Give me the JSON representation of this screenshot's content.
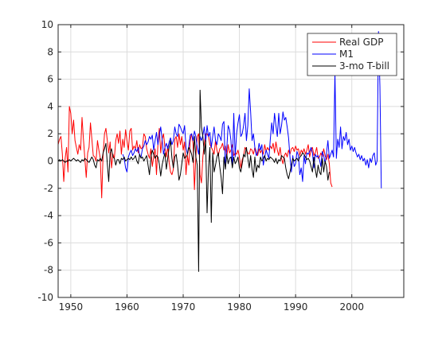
{
  "chart_data": {
    "type": "line",
    "title": "",
    "xlabel": "",
    "ylabel": "",
    "xlim": [
      1947.75,
      2009.25
    ],
    "ylim": [
      -10,
      10
    ],
    "grid": true,
    "legend_position": "top-right",
    "x_ticks": [
      1950,
      1960,
      1970,
      1980,
      1990,
      2000
    ],
    "y_ticks": [
      -10,
      -8,
      -6,
      -4,
      -2,
      0,
      2,
      4,
      6,
      8,
      10
    ],
    "series": [
      {
        "name": "Real GDP",
        "color": "#ff0000",
        "x_start": 1947.75,
        "x_step": 0.25,
        "values": [
          1.2,
          1.6,
          1.8,
          0.5,
          -1.5,
          0.2,
          1.0,
          -0.8,
          4.0,
          3.5,
          2.0,
          3.0,
          1.5,
          1.0,
          0.5,
          1.2,
          0.8,
          3.2,
          1.6,
          0.2,
          -1.2,
          0.6,
          1.0,
          2.8,
          1.6,
          0.4,
          0.3,
          0.0,
          1.5,
          0.8,
          0.2,
          -2.7,
          0.5,
          2.0,
          2.4,
          1.5,
          0.6,
          1.4,
          -0.5,
          0.5,
          0.2,
          1.5,
          2.0,
          1.3,
          2.2,
          0.5,
          1.6,
          1.0,
          2.3,
          1.5,
          0.8,
          2.2,
          2.4,
          0.8,
          1.1,
          0.9,
          1.5,
          0.6,
          1.2,
          0.9,
          1.0,
          2.0,
          1.8,
          0.9,
          0.5,
          0.2,
          0.9,
          -0.4,
          0.3,
          0.9,
          -1.0,
          1.2,
          2.4,
          0.6,
          1.6,
          2.0,
          1.0,
          0.3,
          1.1,
          -0.1,
          -0.8,
          -1.0,
          -0.6,
          1.6,
          1.8,
          1.0,
          2.0,
          1.2,
          1.8,
          0.8,
          1.4,
          -1.0,
          0.4,
          -0.3,
          1.5,
          2.0,
          1.3,
          -2.1,
          0.3,
          1.8,
          2.0,
          -1.0,
          -1.6,
          0.3,
          1.3,
          2.0,
          2.0,
          1.8,
          1.2,
          1.0,
          0.8,
          0.5,
          1.5,
          0.8,
          0.4,
          0.9,
          1.0,
          1.3,
          0.8,
          1.1,
          0.3,
          1.2,
          0.6,
          0.8,
          1.2,
          0.4,
          0.6,
          0.5,
          0.8,
          0.3,
          -0.5,
          0.1,
          0.4,
          1.0,
          0.8,
          0.6,
          0.5,
          0.9,
          0.8,
          0.5,
          1.0,
          0.7,
          0.4,
          0.9,
          0.6,
          0.8,
          0.5,
          1.2,
          0.7,
          1.0,
          0.8,
          1.1,
          0.9,
          1.3,
          0.6,
          1.4,
          0.8,
          0.4,
          1.0,
          0.2,
          -0.2,
          0.4,
          0.6,
          0.3,
          0.8,
          0.5,
          0.9,
          1.0,
          0.7,
          1.1,
          0.8,
          0.9,
          0.4,
          0.8,
          0.6,
          0.9,
          0.5,
          0.8,
          1.2,
          0.3,
          0.8,
          1.0,
          0.4,
          0.6,
          1.0,
          0.2,
          0.3,
          0.6,
          0.3,
          0.9,
          0.4,
          0.1,
          0.5,
          -0.2,
          -1.6,
          -1.9
        ]
      },
      {
        "name": "M1",
        "color": "#0000ff",
        "x_start": 1959.25,
        "x_step": 0.25,
        "values": [
          0.5,
          0.2,
          -0.5,
          -0.8,
          0.3,
          0.6,
          0.8,
          0.4,
          0.6,
          0.9,
          0.7,
          1.0,
          0.4,
          0.3,
          0.9,
          1.1,
          1.5,
          1.2,
          1.4,
          1.8,
          1.6,
          1.9,
          0.8,
          1.5,
          2.1,
          1.2,
          1.9,
          2.5,
          1.6,
          0.5,
          1.0,
          1.3,
          0.9,
          1.4,
          1.7,
          1.2,
          1.5,
          2.5,
          2.0,
          1.8,
          2.7,
          2.5,
          2.2,
          2.0,
          2.6,
          1.0,
          0.5,
          1.1,
          1.9,
          2.0,
          1.5,
          2.2,
          1.8,
          1.0,
          0.5,
          1.8,
          1.5,
          1.9,
          2.5,
          1.4,
          2.6,
          1.8,
          2.1,
          1.0,
          1.8,
          2.5,
          1.5,
          1.2,
          2.0,
          1.8,
          1.5,
          2.7,
          2.9,
          -0.5,
          0.9,
          2.6,
          2.3,
          1.5,
          -0.4,
          3.5,
          0.3,
          2.0,
          2.8,
          3.4,
          1.8,
          2.0,
          2.6,
          3.5,
          1.5,
          2.6,
          5.3,
          3.6,
          1.5,
          2.0,
          1.0,
          0.4,
          0.6,
          1.3,
          0.8,
          1.2,
          -0.3,
          0.3,
          0.8,
          0.5,
          0.2,
          1.6,
          2.8,
          2.0,
          3.5,
          2.6,
          1.8,
          3.5,
          2.0,
          2.6,
          3.6,
          3.0,
          3.2,
          2.5,
          1.7,
          0.3,
          -0.8,
          0.4,
          -0.4,
          -0.2,
          0.7,
          0.4,
          -1.0,
          -0.5,
          -1.5,
          0.4,
          -0.2,
          0.6,
          0.5,
          0.7,
          1.0,
          0.6,
          -0.5,
          0.5,
          0.3,
          0.4,
          0.1,
          -0.4,
          0.7,
          0.4,
          -0.2,
          0.6,
          1.5,
          0.2,
          0.5,
          0.8,
          0.3,
          6.5,
          0.2,
          1.6,
          1.0,
          2.5,
          0.9,
          1.8,
          1.5,
          2.1,
          1.2,
          1.6,
          0.8,
          1.1,
          0.7,
          1.0,
          0.6,
          0.3,
          0.5,
          0.1,
          0.4,
          0.0,
          0.2,
          -0.3,
          0.1,
          -0.5,
          0.2,
          -0.1,
          0.4,
          0.6,
          -0.3,
          0.0,
          9.5,
          5.5,
          -2.0
        ]
      },
      {
        "name": "3-mo T-bill",
        "color": "#000000",
        "x_start": 1947.75,
        "x_step": 0.25,
        "values": [
          0.0,
          0.1,
          0.0,
          0.1,
          0.0,
          -0.1,
          0.0,
          0.0,
          0.1,
          0.0,
          0.1,
          0.2,
          0.1,
          0.0,
          0.1,
          0.0,
          -0.1,
          0.1,
          0.0,
          0.2,
          0.1,
          0.0,
          -0.1,
          0.1,
          0.3,
          0.1,
          -0.3,
          -0.5,
          0.1,
          0.0,
          0.2,
          0.0,
          0.6,
          0.9,
          1.3,
          -0.2,
          -1.5,
          0.6,
          0.9,
          0.3,
          0.2,
          -0.3,
          0.1,
          0.1,
          -0.2,
          0.2,
          0.1,
          0.3,
          0.0,
          0.1,
          0.2,
          0.1,
          0.3,
          0.1,
          0.2,
          0.4,
          0.0,
          -0.2,
          0.5,
          0.2,
          0.3,
          0.0,
          0.2,
          0.4,
          -0.3,
          -1.0,
          0.2,
          0.8,
          0.5,
          0.2,
          0.4,
          0.3,
          -0.2,
          -1.1,
          -0.3,
          0.2,
          0.6,
          -0.6,
          0.2,
          1.0,
          1.5,
          0.2,
          -0.5,
          0.3,
          0.5,
          -0.3,
          -1.4,
          -1.0,
          -0.2,
          0.6,
          0.2,
          0.3,
          0.5,
          1.0,
          0.8,
          0.5,
          -0.1,
          1.8,
          0.3,
          -0.3,
          -8.1,
          5.2,
          2.5,
          1.8,
          0.5,
          1.5,
          -3.8,
          -0.5,
          1.0,
          -4.5,
          0.6,
          -0.8,
          -0.3,
          0.3,
          0.6,
          -0.4,
          -1.2,
          -2.4,
          0.3,
          -0.6,
          0.5,
          -0.2,
          0.2,
          0.3,
          -0.5,
          0.3,
          -0.2,
          0.0,
          0.3,
          -0.5,
          -0.8,
          -0.2,
          0.5,
          0.3,
          1.0,
          0.2,
          -0.5,
          0.4,
          -0.6,
          -1.2,
          0.3,
          -0.8,
          -0.3,
          -0.5,
          0.3,
          0.0,
          0.2,
          0.4,
          0.0,
          0.2,
          0.1,
          0.3,
          0.2,
          0.1,
          -0.1,
          0.2,
          -0.2,
          0.1,
          0.0,
          0.4,
          0.3,
          0.2,
          -0.5,
          -1.0,
          -1.3,
          -0.8,
          -0.3,
          0.2,
          0.0,
          0.1,
          0.2,
          0.0,
          0.3,
          0.4,
          0.6,
          0.5,
          0.3,
          0.1,
          0.2,
          0.0,
          -0.4,
          -0.8,
          0.3,
          -0.6,
          -1.2,
          -0.3,
          -0.8,
          -1.0,
          0.2,
          -0.8,
          0.0,
          -0.4,
          -1.4,
          -0.8
        ]
      }
    ]
  }
}
